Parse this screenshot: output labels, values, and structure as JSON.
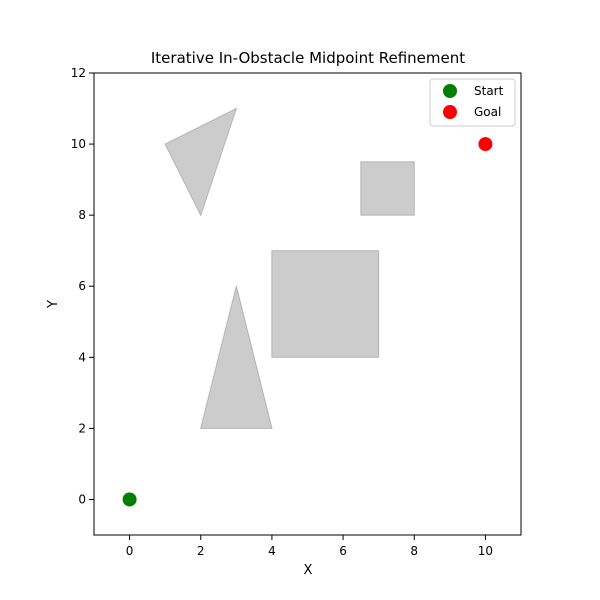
{
  "chart_data": {
    "type": "scatter",
    "title": "Iterative In-Obstacle Midpoint Refinement",
    "xlabel": "X",
    "ylabel": "Y",
    "xlim": [
      -1,
      11
    ],
    "ylim": [
      -1,
      12
    ],
    "xticks": [
      0,
      2,
      4,
      6,
      8,
      10
    ],
    "yticks": [
      0,
      2,
      4,
      6,
      8,
      10,
      12
    ],
    "xtick_labels": [
      "0",
      "2",
      "4",
      "6",
      "8",
      "10"
    ],
    "ytick_labels": [
      "0",
      "2",
      "4",
      "6",
      "8",
      "10",
      "12"
    ],
    "grid": false,
    "legend_position": "top-right",
    "series": [
      {
        "name": "Start",
        "x": [
          0
        ],
        "y": [
          0
        ],
        "color": "#008000"
      },
      {
        "name": "Goal",
        "x": [
          10
        ],
        "y": [
          10
        ],
        "color": "#ff0000"
      }
    ],
    "obstacles": [
      {
        "shape": "triangle",
        "points": [
          [
            1,
            10
          ],
          [
            3,
            11
          ],
          [
            2,
            8
          ]
        ],
        "fill": "#cccccc",
        "stroke": "#b3b3b3"
      },
      {
        "shape": "rectangle",
        "points": [
          [
            6.5,
            8
          ],
          [
            8,
            8
          ],
          [
            8,
            9.5
          ],
          [
            6.5,
            9.5
          ]
        ],
        "fill": "#cccccc",
        "stroke": "#b3b3b3"
      },
      {
        "shape": "rectangle",
        "points": [
          [
            4,
            4
          ],
          [
            7,
            4
          ],
          [
            7,
            7
          ],
          [
            4,
            7
          ]
        ],
        "fill": "#cccccc",
        "stroke": "#b3b3b3"
      },
      {
        "shape": "triangle",
        "points": [
          [
            2,
            2
          ],
          [
            4,
            2
          ],
          [
            3,
            6
          ]
        ],
        "fill": "#cccccc",
        "stroke": "#b3b3b3"
      }
    ]
  }
}
